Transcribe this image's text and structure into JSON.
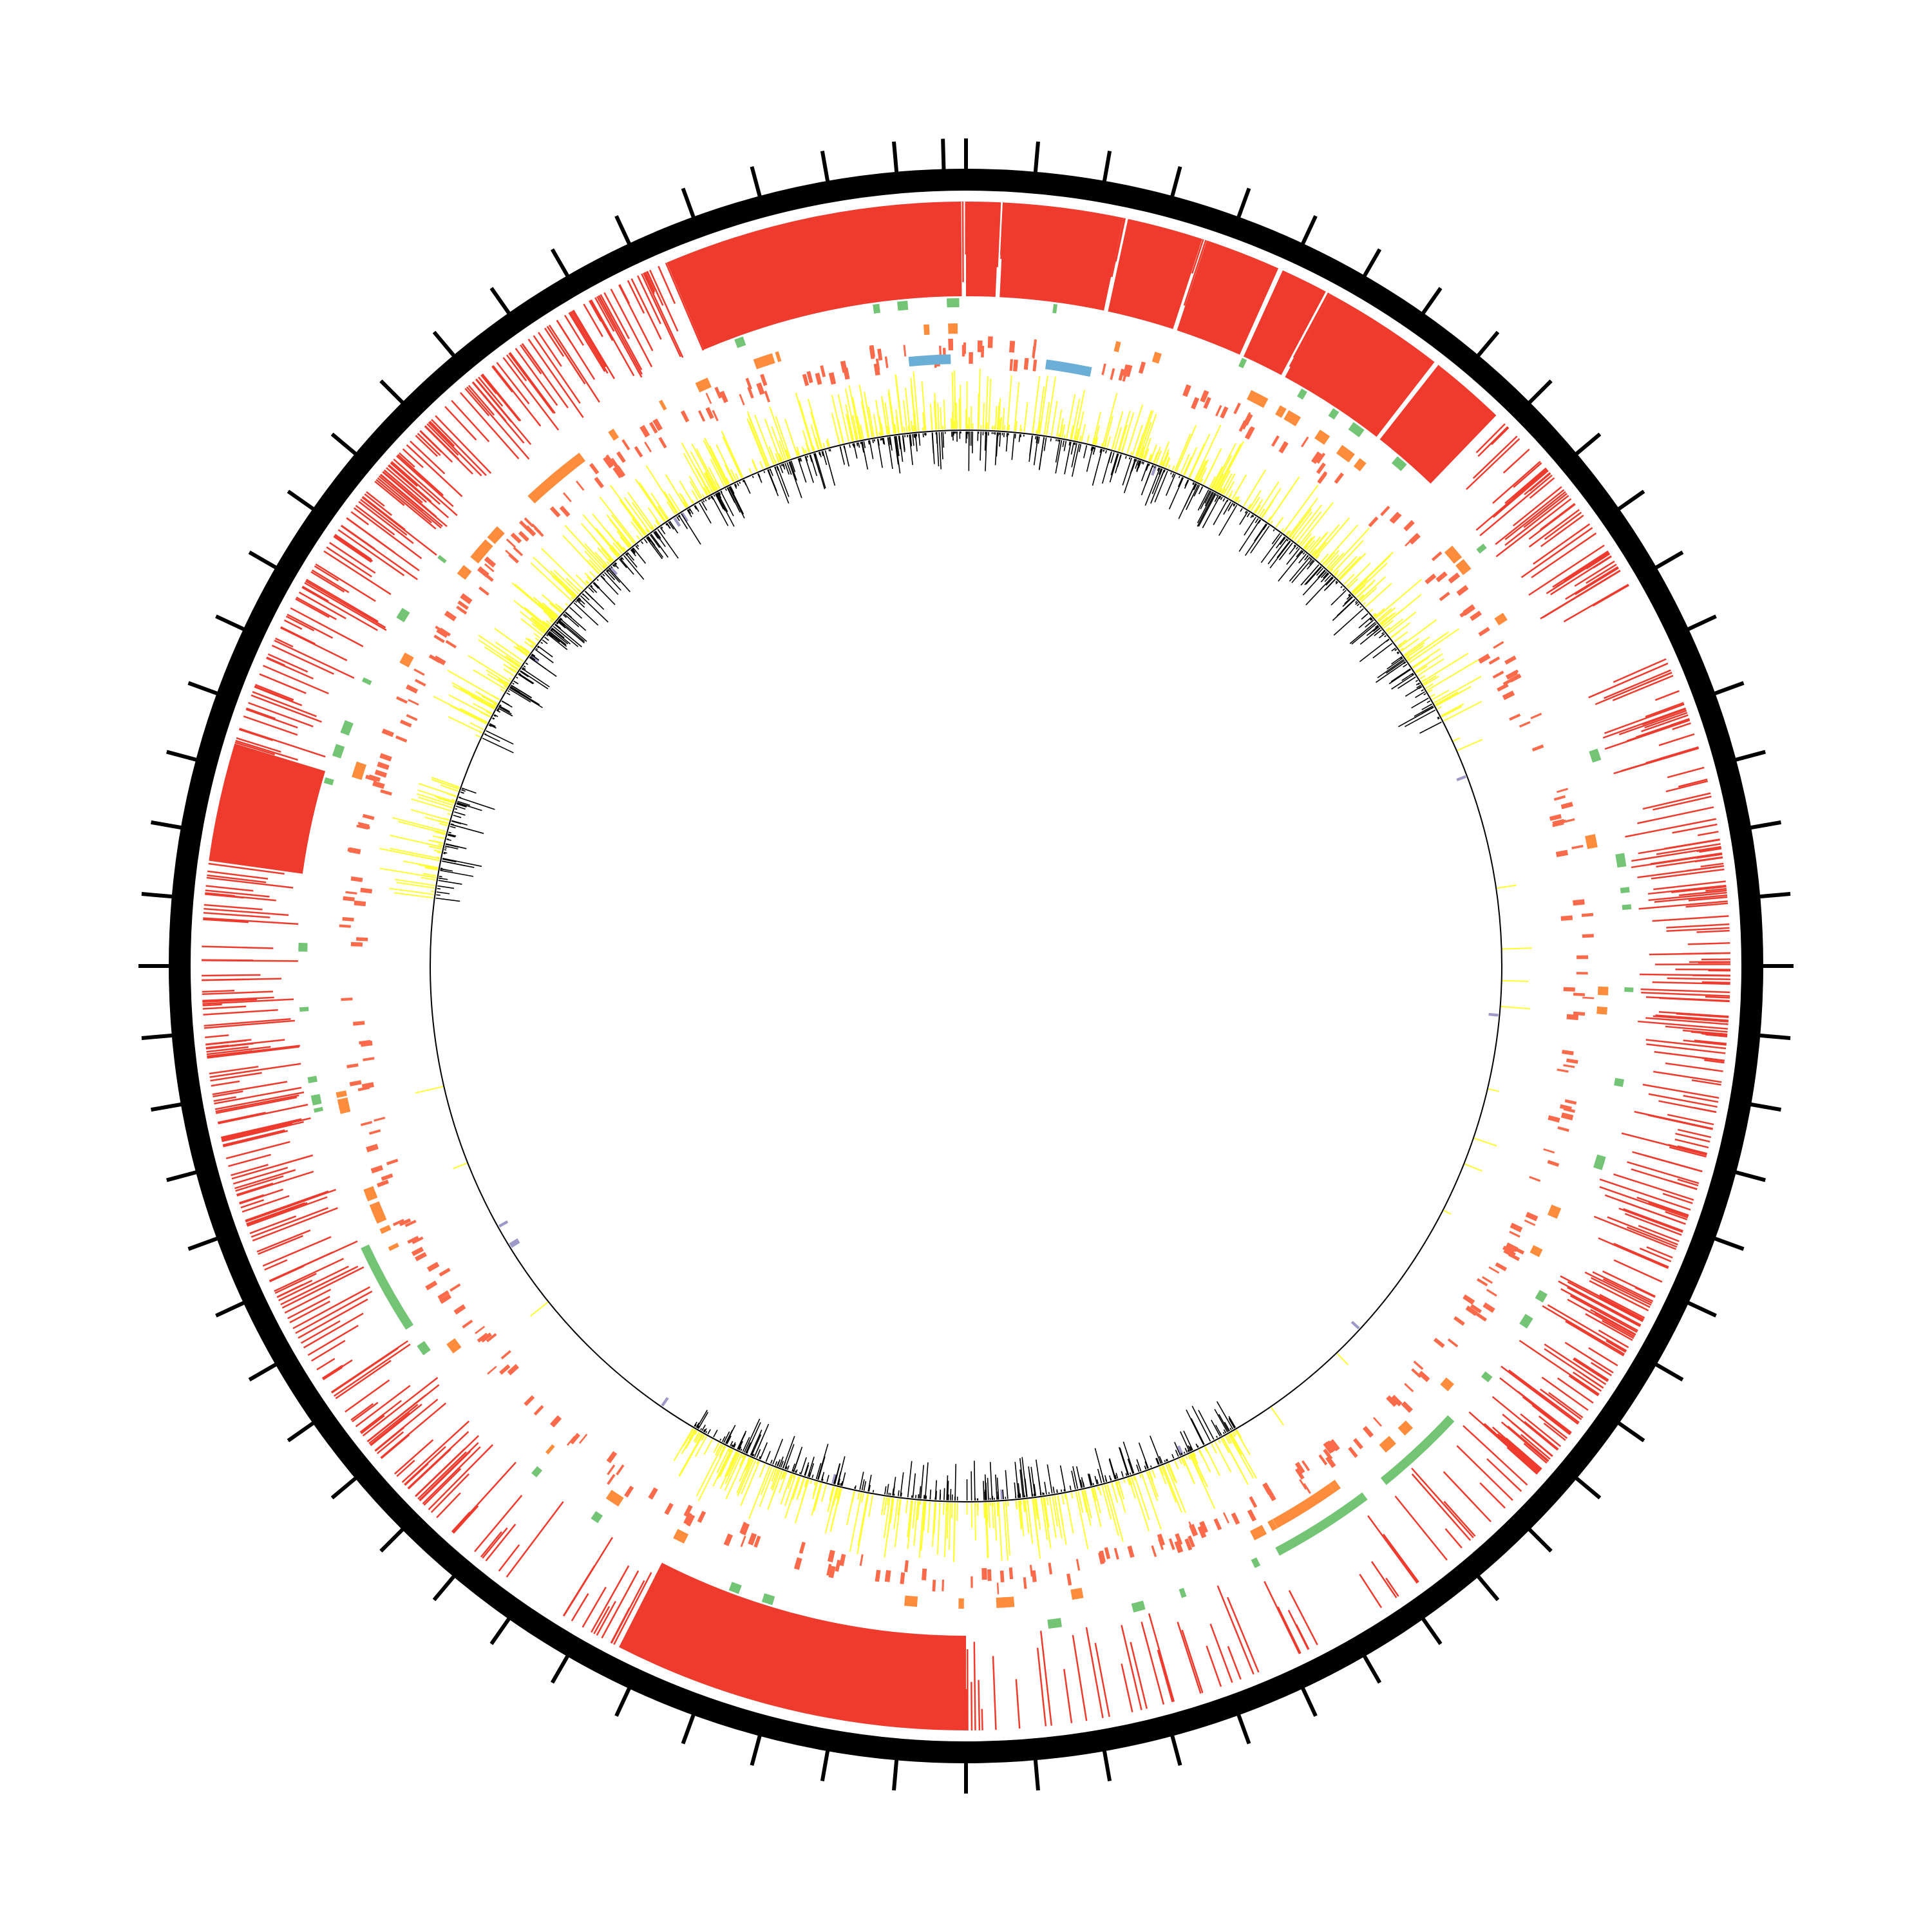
{
  "chart_data": {
    "type": "circular-genome-map",
    "title": "",
    "axis": {
      "tick_count": 72,
      "labels": []
    },
    "colors": {
      "backbone": "#000000",
      "hits": "#ee3b2e",
      "green_features": "#74c476",
      "orange_features": "#fd8d3c",
      "salmon_features": "#fb6a4a",
      "blue_features": "#6baed6",
      "purple_features": "#9e9ac8",
      "gc_positive": "#ffff33",
      "gc_negative": "#000000",
      "baseline": "#000000"
    },
    "tracks": [
      {
        "name": "",
        "kind": "hits",
        "color_key": "hits",
        "dense_blocks_pct": [
          [
            93.6,
            99.9
          ],
          [
            0.0,
            0.7
          ],
          [
            0.8,
            3.3
          ],
          [
            3.4,
            5.0
          ],
          [
            5.1,
            6.7
          ],
          [
            6.8,
            7.8
          ],
          [
            7.9,
            10.5
          ],
          [
            10.6,
            12.2
          ],
          [
            77.2,
            79.7
          ],
          [
            50.0,
            57.5
          ]
        ]
      },
      {
        "name": "",
        "kind": "features",
        "color_key": "green_features"
      },
      {
        "name": "",
        "kind": "features",
        "color_key": "orange_features"
      },
      {
        "name": "",
        "kind": "features",
        "color_key": "salmon_features"
      },
      {
        "name": "",
        "kind": "features",
        "color_key": "blue_features",
        "blocks_pct": [
          [
            98.5,
            99.6
          ],
          [
            2.1,
            3.3
          ]
        ]
      },
      {
        "name": "",
        "kind": "features",
        "color_key": "purple_features"
      },
      {
        "name": "",
        "kind": "gc",
        "color_key": "gc_positive",
        "active_regions_pct": [
          [
            82.0,
            100
          ],
          [
            0,
            17.5
          ],
          [
            41.5,
            58.5
          ],
          [
            77.0,
            80.5
          ]
        ]
      }
    ]
  }
}
